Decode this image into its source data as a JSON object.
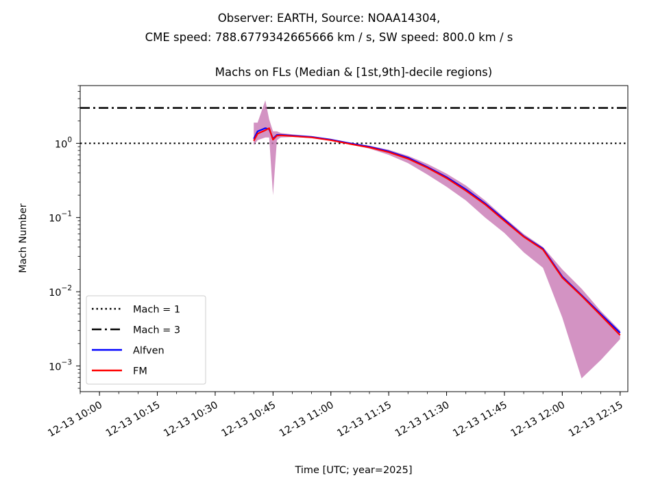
{
  "suptitle": {
    "line1": "Observer: EARTH, Source: NOAA14304,",
    "line2": "CME speed: 788.6779342665666 km / s, SW speed: 800.0 km / s"
  },
  "chart_data": {
    "type": "line",
    "title": "Machs on FLs (Median & [1st,9th]-decile regions)",
    "xlabel": "Time [UTC; year=2025]",
    "ylabel": "Mach Number",
    "yscale": "log",
    "ylim": [
      0.00045,
      6.0
    ],
    "xlim": [
      "2025-12-13 09:55",
      "2025-12-13 12:17"
    ],
    "x_ticks": [
      "12-13 10:00",
      "12-13 10:15",
      "12-13 10:30",
      "12-13 10:45",
      "12-13 11:00",
      "12-13 11:15",
      "12-13 11:30",
      "12-13 11:45",
      "12-13 12:00",
      "12-13 12:15"
    ],
    "y_ticks": [
      {
        "base": "10",
        "exp": "0",
        "value": 1
      },
      {
        "base": "10",
        "exp": "−1",
        "value": 0.1
      },
      {
        "base": "10",
        "exp": "−2",
        "value": 0.01
      },
      {
        "base": "10",
        "exp": "−3",
        "value": 0.001
      }
    ],
    "reference_lines": [
      {
        "name": "Mach = 1",
        "value": 1,
        "style": "dotted",
        "color": "#000000"
      },
      {
        "name": "Mach = 3",
        "value": 3,
        "style": "dashdot",
        "color": "#000000"
      }
    ],
    "x": [
      "2025-12-13 10:40",
      "2025-12-13 10:41",
      "2025-12-13 10:43",
      "2025-12-13 10:44",
      "2025-12-13 10:45",
      "2025-12-13 10:46",
      "2025-12-13 10:47",
      "2025-12-13 10:50",
      "2025-12-13 10:55",
      "2025-12-13 11:00",
      "2025-12-13 11:05",
      "2025-12-13 11:10",
      "2025-12-13 11:15",
      "2025-12-13 11:20",
      "2025-12-13 11:25",
      "2025-12-13 11:30",
      "2025-12-13 11:35",
      "2025-12-13 11:40",
      "2025-12-13 11:45",
      "2025-12-13 11:50",
      "2025-12-13 11:55",
      "2025-12-13 12:00",
      "2025-12-13 12:05",
      "2025-12-13 12:10",
      "2025-12-13 12:15"
    ],
    "series": [
      {
        "name": "Alfven",
        "color": "#0000ff",
        "values": [
          1.15,
          1.45,
          1.6,
          1.55,
          1.15,
          1.3,
          1.3,
          1.27,
          1.22,
          1.12,
          1.0,
          0.9,
          0.78,
          0.64,
          0.48,
          0.35,
          0.24,
          0.155,
          0.094,
          0.056,
          0.038,
          0.016,
          0.009,
          0.005,
          0.0028
        ]
      },
      {
        "name": "FM",
        "color": "#ff0000",
        "values": [
          1.08,
          1.35,
          1.5,
          1.6,
          1.12,
          1.27,
          1.28,
          1.25,
          1.2,
          1.1,
          0.98,
          0.88,
          0.76,
          0.62,
          0.47,
          0.34,
          0.23,
          0.15,
          0.09,
          0.055,
          0.037,
          0.0155,
          0.0088,
          0.0048,
          0.0026
        ]
      }
    ],
    "band": {
      "color": "#c878b4",
      "lower": [
        0.95,
        1.1,
        1.2,
        1.2,
        0.2,
        1.1,
        1.2,
        1.22,
        1.17,
        1.08,
        0.96,
        0.85,
        0.7,
        0.54,
        0.38,
        0.26,
        0.17,
        0.1,
        0.062,
        0.034,
        0.021,
        0.0045,
        0.00068,
        0.0012,
        0.0023
      ],
      "upper": [
        1.9,
        1.9,
        3.8,
        2.1,
        1.45,
        1.45,
        1.38,
        1.32,
        1.25,
        1.15,
        1.02,
        0.93,
        0.82,
        0.68,
        0.53,
        0.39,
        0.27,
        0.17,
        0.1,
        0.06,
        0.04,
        0.02,
        0.011,
        0.0055,
        0.003
      ]
    },
    "legend_position": "lower-left"
  }
}
